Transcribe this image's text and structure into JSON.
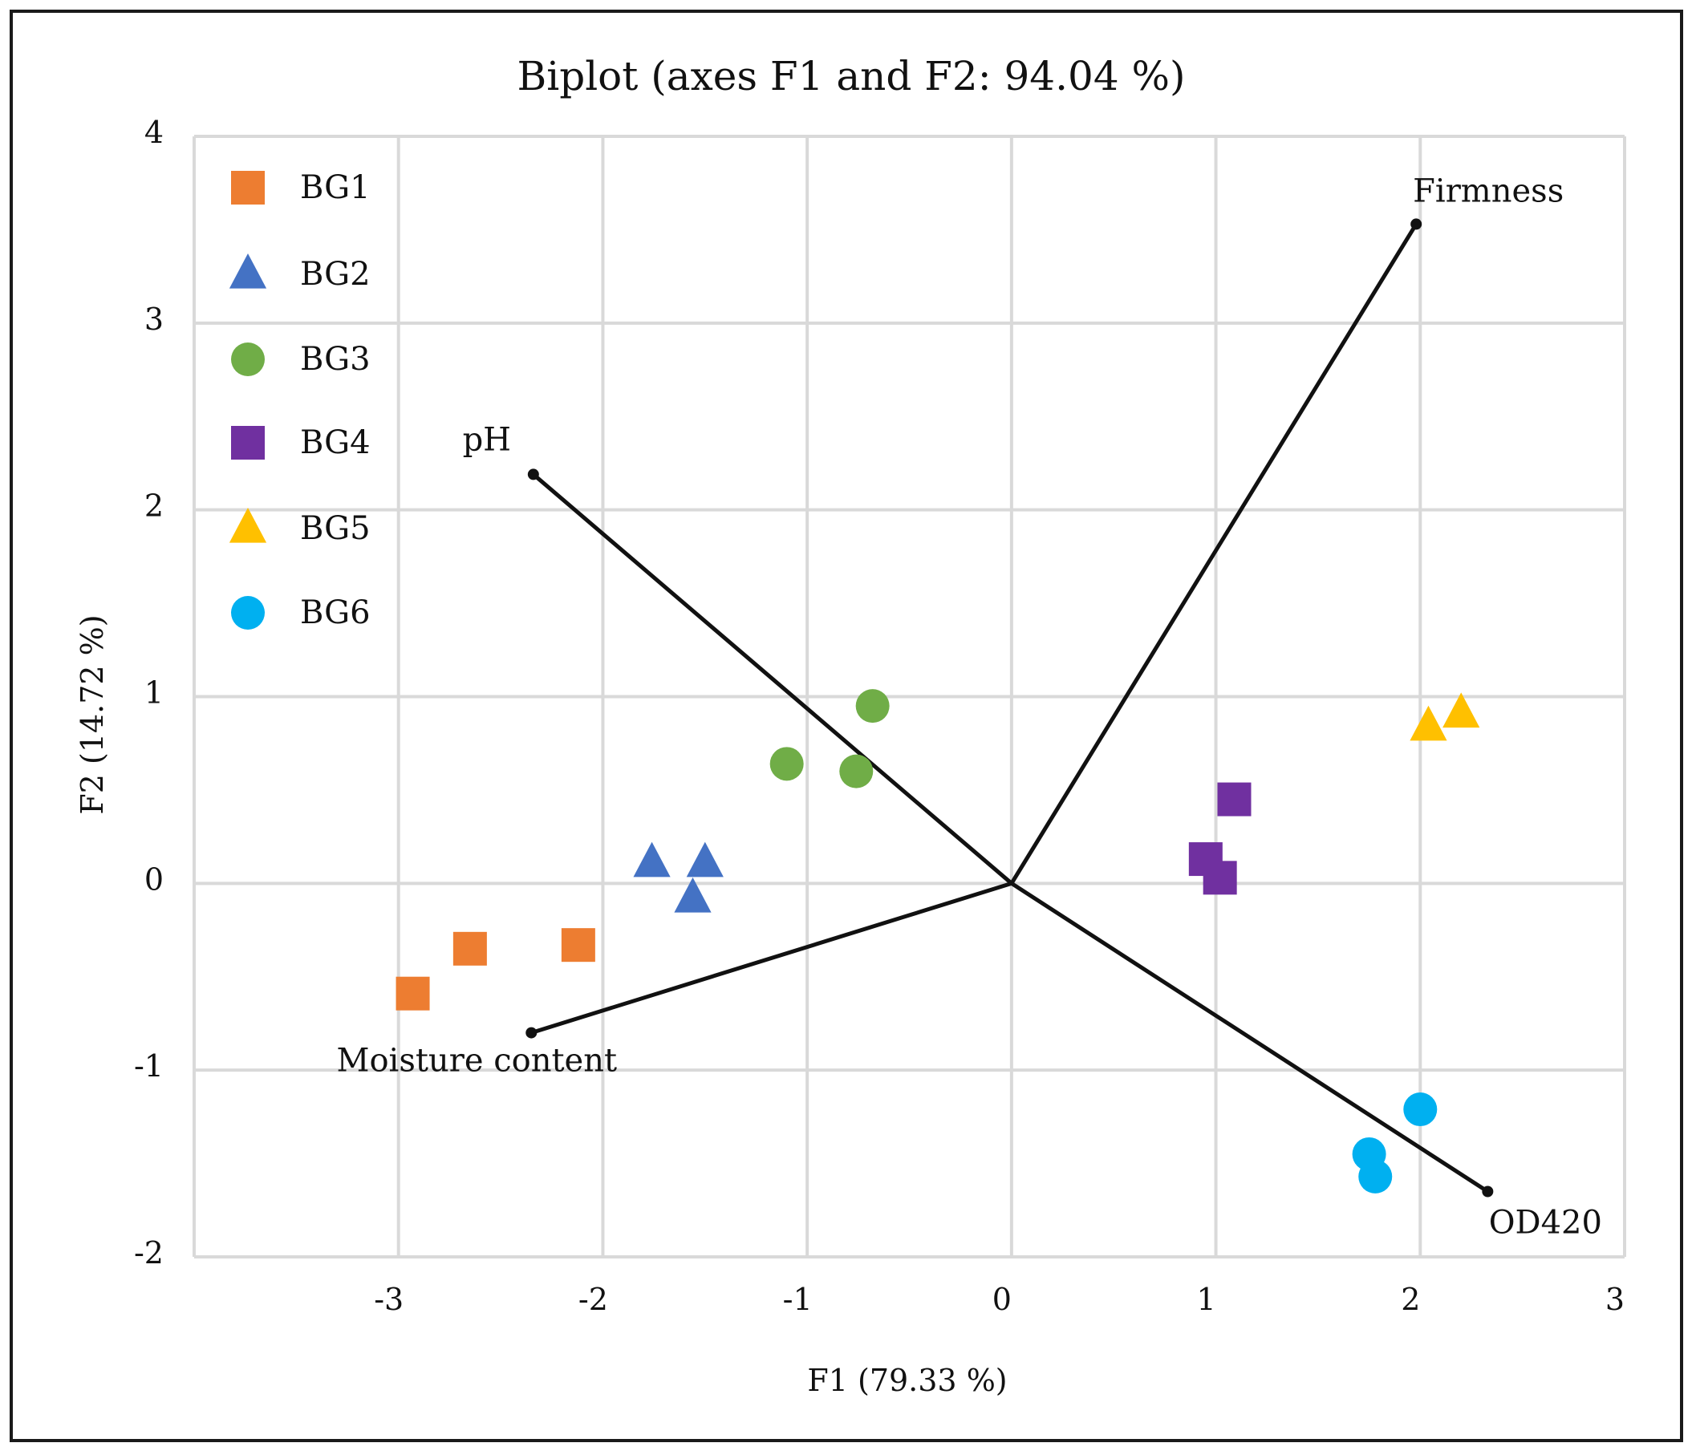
{
  "chart_data": {
    "type": "scatter",
    "title": "Biplot (axes F1 and F2: 94.04 %)",
    "xlabel": "F1 (79.33 %)",
    "ylabel": "F2 (14.72 %)",
    "xlim": [
      -4,
      3
    ],
    "ylim": [
      -2,
      4
    ],
    "x_ticks": [
      -3,
      -2,
      -1,
      0,
      1,
      2,
      3
    ],
    "y_ticks": [
      -2,
      -1,
      0,
      1,
      2,
      3,
      4
    ],
    "x_tick_labels": [
      "-3",
      "-2",
      "-1",
      "0",
      "1",
      "2",
      "3"
    ],
    "y_tick_labels": [
      "-2",
      "-1",
      "0",
      "1",
      "2",
      "3",
      "4"
    ],
    "grid": true,
    "legend_position": "top-left",
    "series": [
      {
        "name": "BG1",
        "marker": "square",
        "color": "#ED7D31",
        "points": [
          [
            -2.93,
            -0.59
          ],
          [
            -2.65,
            -0.35
          ],
          [
            -2.12,
            -0.33
          ]
        ]
      },
      {
        "name": "BG2",
        "marker": "triangle",
        "color": "#4472C4",
        "points": [
          [
            -1.76,
            0.11
          ],
          [
            -1.5,
            0.11
          ],
          [
            -1.56,
            -0.08
          ]
        ]
      },
      {
        "name": "BG3",
        "marker": "circle",
        "color": "#70AD47",
        "points": [
          [
            -1.1,
            0.64
          ],
          [
            -0.76,
            0.6
          ],
          [
            -0.68,
            0.95
          ]
        ]
      },
      {
        "name": "BG4",
        "marker": "square",
        "color": "#7030A0",
        "points": [
          [
            1.09,
            0.45
          ],
          [
            0.95,
            0.13
          ],
          [
            1.02,
            0.03
          ]
        ]
      },
      {
        "name": "BG5",
        "marker": "triangle",
        "color": "#FFC000",
        "points": [
          [
            2.04,
            0.84
          ],
          [
            2.2,
            0.91
          ]
        ]
      },
      {
        "name": "BG6",
        "marker": "circle",
        "color": "#00B0F0",
        "points": [
          [
            2.0,
            -1.21
          ],
          [
            1.75,
            -1.45
          ],
          [
            1.78,
            -1.57
          ]
        ]
      }
    ],
    "vectors": [
      {
        "name": "Firmness",
        "x": 1.98,
        "y": 3.53
      },
      {
        "name": "pH",
        "x": -2.34,
        "y": 2.19
      },
      {
        "name": "Moisture content",
        "x": -2.35,
        "y": -0.8
      },
      {
        "name": "OD420",
        "x": 2.33,
        "y": -1.65
      }
    ]
  }
}
